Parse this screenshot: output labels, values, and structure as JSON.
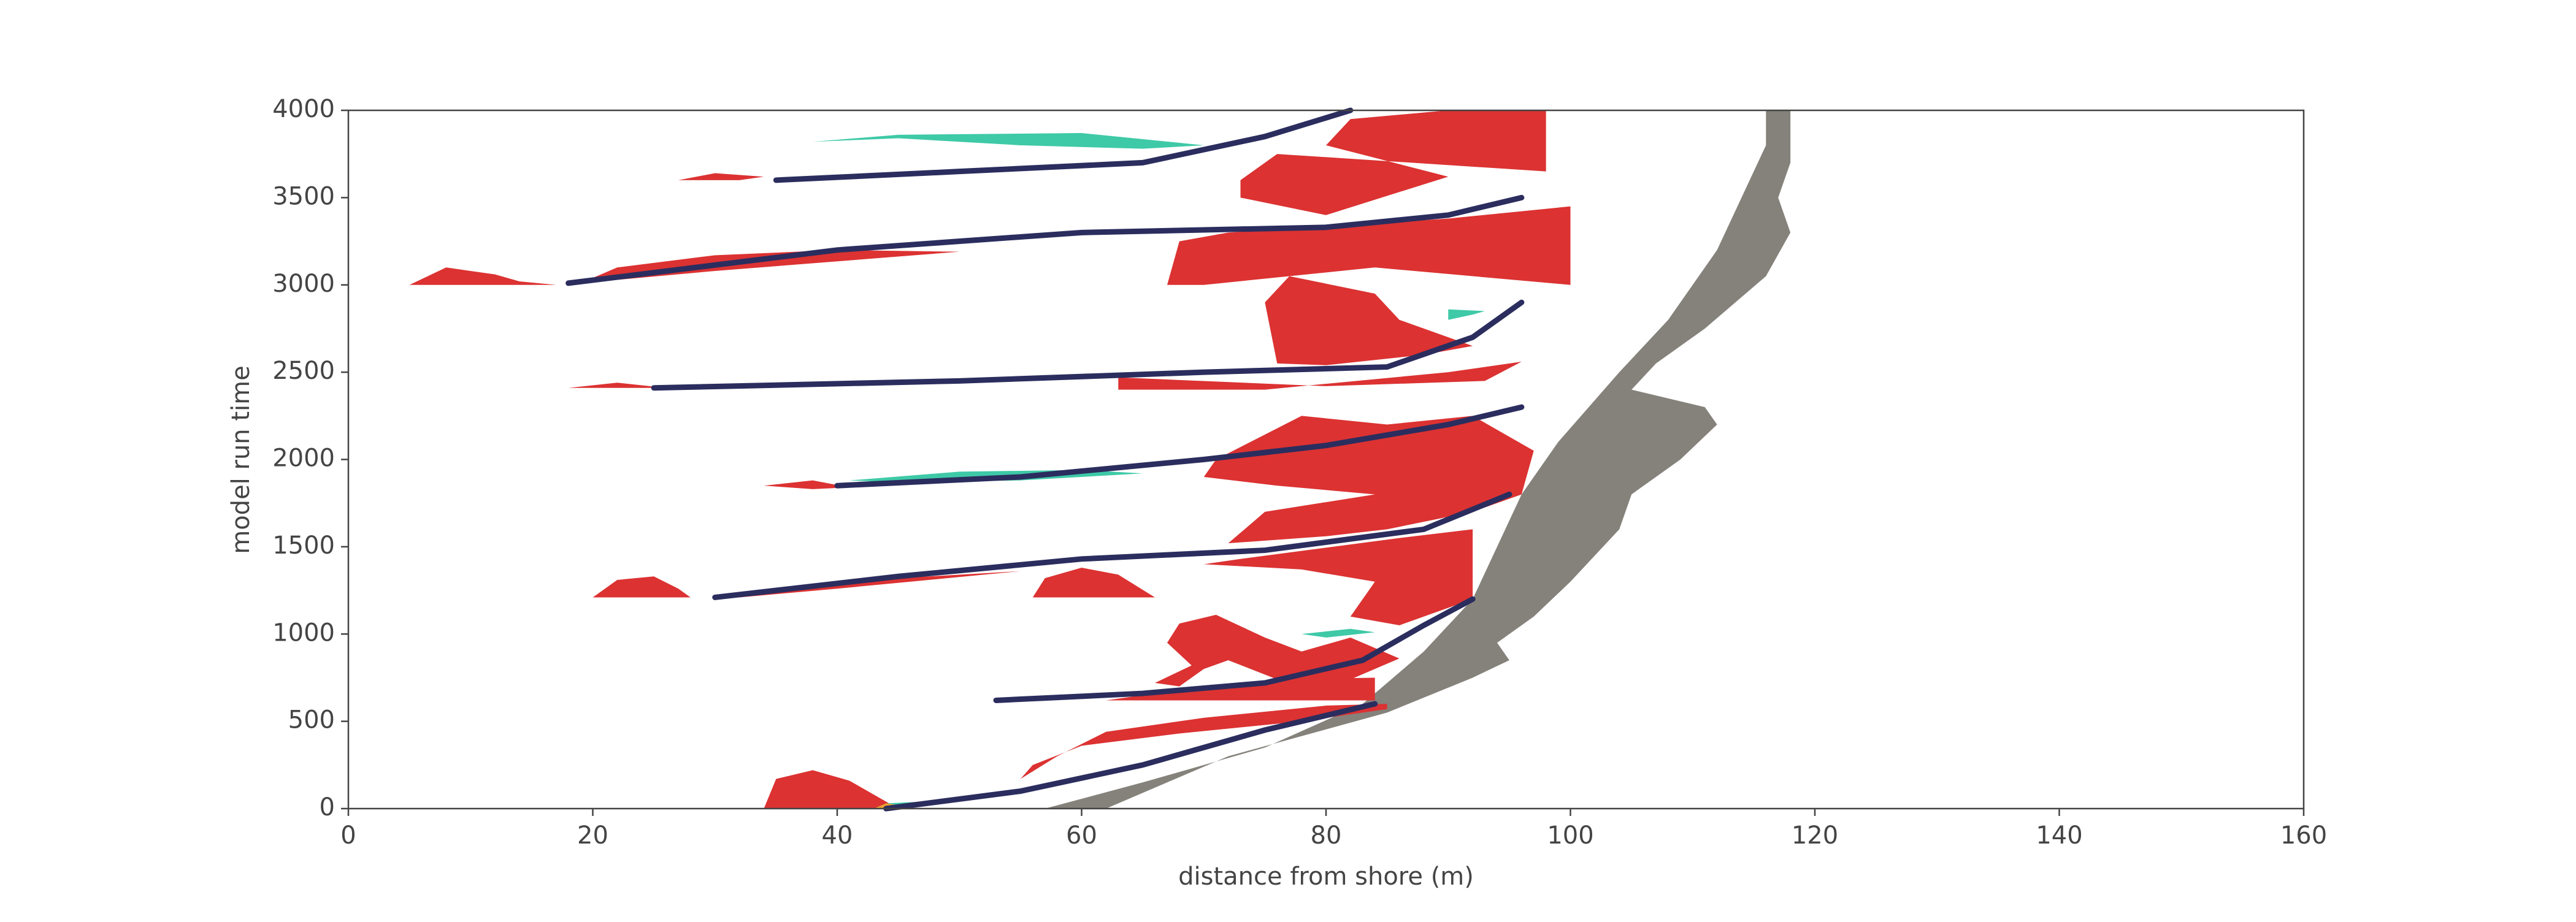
{
  "chart_data": {
    "type": "region",
    "x_label": "distance from shore (m)",
    "y_label": "model run time",
    "xlim": [
      0,
      160
    ],
    "xticks": [
      0,
      20,
      40,
      60,
      80,
      100,
      120,
      140,
      160
    ],
    "ylim": [
      0,
      4000
    ],
    "yticks": [
      0,
      500,
      1000,
      1500,
      2000,
      2500,
      3000,
      3500,
      4000
    ],
    "regions": [
      {
        "color": "#85827b",
        "x": [
          57,
          65,
          75,
          83,
          88,
          92,
          94,
          96,
          99,
          104,
          108,
          112,
          114,
          116,
          116,
          118,
          118,
          117,
          118,
          116,
          111,
          107,
          105,
          111,
          112,
          109,
          105,
          104,
          100,
          97,
          94,
          95,
          92,
          85,
          72,
          62
        ],
        "y": [
          0,
          150,
          350,
          600,
          900,
          1200,
          1500,
          1800,
          2100,
          2500,
          2800,
          3200,
          3500,
          3800,
          4000,
          4000,
          3700,
          3500,
          3300,
          3050,
          2750,
          2550,
          2400,
          2300,
          2200,
          2000,
          1800,
          1600,
          1300,
          1100,
          950,
          850,
          750,
          550,
          300,
          0
        ]
      },
      {
        "color": "#dc3232",
        "x": [
          34,
          35,
          38,
          41,
          44,
          45
        ],
        "y": [
          0,
          170,
          220,
          160,
          40,
          0
        ]
      },
      {
        "color": "#dc3232",
        "x": [
          55,
          56,
          60,
          68,
          78,
          85,
          85,
          80,
          70,
          62,
          58
        ],
        "y": [
          170,
          250,
          360,
          430,
          500,
          570,
          600,
          590,
          520,
          440,
          300
        ]
      },
      {
        "color": "#dc3232",
        "x": [
          62,
          84,
          84,
          76,
          68
        ],
        "y": [
          620,
          620,
          750,
          740,
          680
        ]
      },
      {
        "color": "#dc3232",
        "x": [
          66,
          69,
          67,
          68,
          71,
          75,
          78,
          82,
          86,
          80,
          76,
          72,
          70,
          68
        ],
        "y": [
          720,
          820,
          950,
          1060,
          1110,
          980,
          900,
          980,
          860,
          680,
          740,
          850,
          800,
          700
        ]
      },
      {
        "color": "#dc3232",
        "x": [
          70,
          78,
          84,
          82,
          86,
          92,
          92,
          86,
          73
        ],
        "y": [
          1400,
          1370,
          1300,
          1100,
          1050,
          1200,
          1600,
          1550,
          1430
        ]
      },
      {
        "color": "#dc3232",
        "x": [
          56,
          57,
          60,
          63,
          66
        ],
        "y": [
          1210,
          1320,
          1380,
          1340,
          1210
        ]
      },
      {
        "color": "#dc3232",
        "x": [
          20,
          22,
          25,
          27,
          28
        ],
        "y": [
          1210,
          1310,
          1330,
          1260,
          1210
        ]
      },
      {
        "color": "#dc3232",
        "x": [
          31,
          40,
          55,
          52,
          40,
          32
        ],
        "y": [
          1215,
          1300,
          1360,
          1340,
          1260,
          1210
        ]
      },
      {
        "color": "#dc3232",
        "x": [
          72,
          80,
          85,
          92,
          96,
          97,
          92,
          85,
          78,
          71,
          70,
          76,
          84,
          75
        ],
        "y": [
          1520,
          1560,
          1600,
          1700,
          1800,
          2050,
          2250,
          2200,
          2250,
          2000,
          1900,
          1850,
          1800,
          1700
        ]
      },
      {
        "color": "#dc3232",
        "x": [
          63,
          75,
          90,
          96,
          93,
          80,
          63
        ],
        "y": [
          2400,
          2400,
          2500,
          2560,
          2450,
          2420,
          2470
        ]
      },
      {
        "color": "#dc3232",
        "x": [
          76,
          80,
          88,
          92,
          86,
          84,
          77,
          75
        ],
        "y": [
          2550,
          2540,
          2600,
          2650,
          2800,
          2950,
          3050,
          2900
        ]
      },
      {
        "color": "#dc3232",
        "x": [
          67,
          68,
          72,
          90,
          100,
          100,
          84,
          70
        ],
        "y": [
          3000,
          3250,
          3300,
          3380,
          3450,
          3000,
          3100,
          3000
        ]
      },
      {
        "color": "#dc3232",
        "x": [
          73,
          76,
          98,
          98,
          90,
          82,
          80,
          90,
          80,
          73
        ],
        "y": [
          3600,
          3750,
          3650,
          4000,
          4000,
          3950,
          3800,
          3620,
          3400,
          3500
        ]
      },
      {
        "color": "#dc3232",
        "x": [
          5,
          8,
          12,
          14,
          17
        ],
        "y": [
          3000,
          3100,
          3060,
          3020,
          3000
        ]
      },
      {
        "color": "#dc3232",
        "x": [
          19,
          22,
          30,
          40,
          50,
          30
        ],
        "y": [
          3010,
          3100,
          3170,
          3200,
          3190,
          3080
        ]
      },
      {
        "color": "#dc3232",
        "x": [
          18,
          22,
          26
        ],
        "y": [
          2410,
          2440,
          2410
        ]
      },
      {
        "color": "#dc3232",
        "x": [
          34,
          38,
          41,
          38
        ],
        "y": [
          1850,
          1880,
          1840,
          1830
        ]
      },
      {
        "color": "#dc3232",
        "x": [
          27,
          30,
          34,
          32
        ],
        "y": [
          3600,
          3640,
          3620,
          3600
        ]
      },
      {
        "color": "#3ec9a7",
        "x": [
          38,
          45,
          55,
          65,
          70,
          60,
          45
        ],
        "y": [
          3820,
          3840,
          3800,
          3780,
          3800,
          3870,
          3860
        ]
      },
      {
        "color": "#3ec9a7",
        "x": [
          41,
          50,
          60,
          65,
          55,
          45
        ],
        "y": [
          1880,
          1930,
          1940,
          1920,
          1880,
          1870
        ]
      },
      {
        "color": "#3ec9a7",
        "x": [
          78,
          82,
          84,
          80
        ],
        "y": [
          1000,
          1030,
          1010,
          980
        ]
      },
      {
        "color": "#3ec9a7",
        "x": [
          90,
          92,
          93,
          90
        ],
        "y": [
          2800,
          2830,
          2850,
          2860
        ]
      },
      {
        "color": "#3ec9a7",
        "x": [
          43,
          46,
          47,
          44
        ],
        "y": [
          0,
          0,
          40,
          30
        ]
      },
      {
        "color": "#f0a030",
        "x": [
          43,
          44,
          45,
          44
        ],
        "y": [
          0,
          30,
          20,
          0
        ]
      }
    ],
    "curves": [
      {
        "color": "#2b2d5e",
        "x": [
          44,
          55,
          65,
          75,
          84
        ],
        "y": [
          0,
          100,
          250,
          450,
          600
        ]
      },
      {
        "color": "#2b2d5e",
        "x": [
          53,
          65,
          75,
          83,
          88,
          92
        ],
        "y": [
          620,
          660,
          720,
          850,
          1050,
          1200
        ]
      },
      {
        "color": "#2b2d5e",
        "x": [
          30,
          45,
          60,
          75,
          88,
          95
        ],
        "y": [
          1210,
          1330,
          1430,
          1480,
          1600,
          1800
        ]
      },
      {
        "color": "#2b2d5e",
        "x": [
          40,
          55,
          70,
          80,
          90,
          96
        ],
        "y": [
          1850,
          1900,
          2000,
          2080,
          2200,
          2300
        ]
      },
      {
        "color": "#2b2d5e",
        "x": [
          25,
          50,
          70,
          85,
          92,
          96
        ],
        "y": [
          2410,
          2450,
          2500,
          2530,
          2700,
          2900
        ]
      },
      {
        "color": "#2b2d5e",
        "x": [
          18,
          40,
          60,
          80,
          90,
          96
        ],
        "y": [
          3010,
          3200,
          3300,
          3330,
          3400,
          3500
        ]
      },
      {
        "color": "#2b2d5e",
        "x": [
          35,
          50,
          65,
          75,
          82
        ],
        "y": [
          3600,
          3650,
          3700,
          3850,
          4000
        ]
      }
    ]
  }
}
